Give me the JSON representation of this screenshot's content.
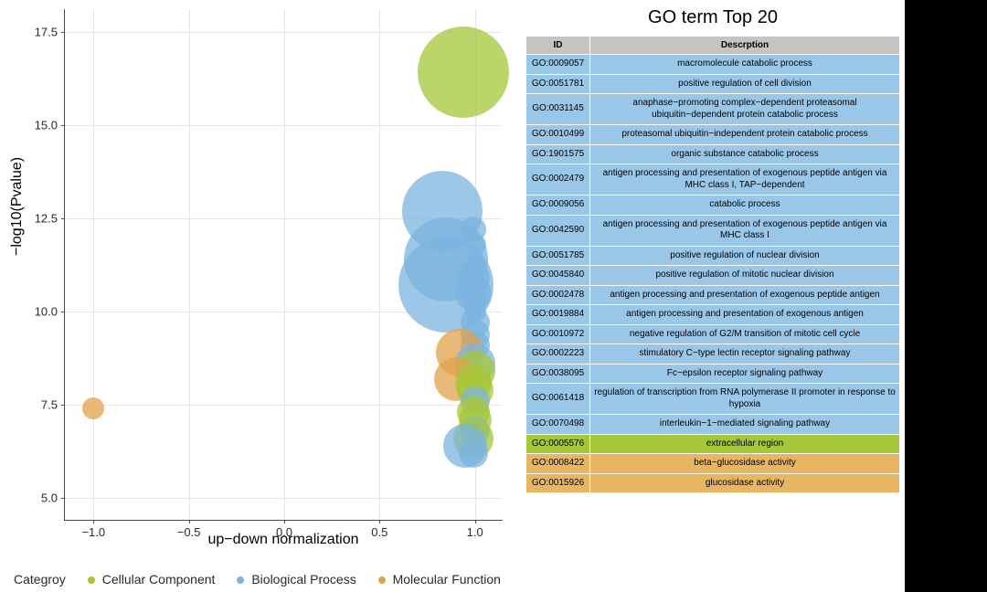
{
  "chart": {
    "type": "scatter-bubble",
    "x_label": "up−down normalization",
    "y_label": "−log10(Pvalue)",
    "xlim": [
      -1.15,
      1.15
    ],
    "ylim": [
      4.4,
      18.1
    ],
    "x_ticks": [
      -1.0,
      -0.5,
      0.0,
      0.5,
      1.0
    ],
    "x_tick_labels": [
      "−1.0",
      "−0.5",
      "0.0",
      "0.5",
      "1.0"
    ],
    "y_ticks": [
      5.0,
      7.5,
      10.0,
      12.5,
      15.0,
      17.5
    ],
    "y_tick_labels": [
      "5.0",
      "7.5",
      "10.0",
      "12.5",
      "15.0",
      "17.5"
    ],
    "grid_color": "#e6e6e6",
    "axis_color": "#4a4a4a",
    "background_color": "#ffffff",
    "bubbles": [
      {
        "x": 0.94,
        "y": 16.4,
        "r": 50,
        "cat": "cc"
      },
      {
        "x": 0.83,
        "y": 12.7,
        "r": 44,
        "cat": "bp"
      },
      {
        "x": 0.99,
        "y": 12.2,
        "r": 14,
        "cat": "bp"
      },
      {
        "x": 1.0,
        "y": 11.8,
        "r": 12,
        "cat": "bp"
      },
      {
        "x": 0.85,
        "y": 11.4,
        "r": 46,
        "cat": "bp"
      },
      {
        "x": 1.0,
        "y": 11.2,
        "r": 12,
        "cat": "bp"
      },
      {
        "x": 0.99,
        "y": 10.9,
        "r": 18,
        "cat": "bp"
      },
      {
        "x": 0.85,
        "y": 10.7,
        "r": 52,
        "cat": "bp"
      },
      {
        "x": 0.99,
        "y": 10.5,
        "r": 20,
        "cat": "bp"
      },
      {
        "x": 1.0,
        "y": 10.3,
        "r": 12,
        "cat": "bp"
      },
      {
        "x": 1.0,
        "y": 10.0,
        "r": 12,
        "cat": "bp"
      },
      {
        "x": 1.0,
        "y": 9.7,
        "r": 16,
        "cat": "bp"
      },
      {
        "x": 1.0,
        "y": 9.4,
        "r": 16,
        "cat": "bp"
      },
      {
        "x": 1.0,
        "y": 9.1,
        "r": 16,
        "cat": "bp"
      },
      {
        "x": 0.92,
        "y": 8.9,
        "r": 26,
        "cat": "mf"
      },
      {
        "x": 1.0,
        "y": 8.6,
        "r": 22,
        "cat": "bp"
      },
      {
        "x": 1.0,
        "y": 8.4,
        "r": 22,
        "cat": "cc"
      },
      {
        "x": 0.9,
        "y": 8.2,
        "r": 24,
        "cat": "mf"
      },
      {
        "x": 0.99,
        "y": 8.1,
        "r": 20,
        "cat": "cc"
      },
      {
        "x": 1.0,
        "y": 7.9,
        "r": 20,
        "cat": "cc"
      },
      {
        "x": 1.0,
        "y": 7.6,
        "r": 16,
        "cat": "bp"
      },
      {
        "x": 0.99,
        "y": 7.3,
        "r": 18,
        "cat": "cc"
      },
      {
        "x": 1.0,
        "y": 7.1,
        "r": 18,
        "cat": "cc"
      },
      {
        "x": 1.0,
        "y": 6.8,
        "r": 16,
        "cat": "bp"
      },
      {
        "x": 0.99,
        "y": 6.6,
        "r": 22,
        "cat": "cc"
      },
      {
        "x": 0.95,
        "y": 6.4,
        "r": 24,
        "cat": "bp"
      },
      {
        "x": 0.99,
        "y": 6.2,
        "r": 16,
        "cat": "bp"
      },
      {
        "x": -1.0,
        "y": 7.4,
        "r": 12,
        "cat": "mf"
      }
    ],
    "category_colors": {
      "cc": "#a5c73a",
      "bp": "#7bb4df",
      "mf": "#e2a24a"
    }
  },
  "legend": {
    "title": "Categroy",
    "items": [
      {
        "label": "Cellular Component",
        "color": "#a5c73a"
      },
      {
        "label": "Biological Process",
        "color": "#7bb4df"
      },
      {
        "label": "Molecular Function",
        "color": "#e2a24a"
      }
    ]
  },
  "table": {
    "title": "GO term Top 20",
    "headers": [
      "ID",
      "Descrption"
    ],
    "header_bg": "#c4c4c4",
    "rows": [
      {
        "id": "GO:0009057",
        "desc": "macromolecule catabolic process",
        "cat": "bp"
      },
      {
        "id": "GO:0051781",
        "desc": "positive regulation of cell division",
        "cat": "bp"
      },
      {
        "id": "GO:0031145",
        "desc": "anaphase−promoting complex−dependent proteasomal ubiquitin−dependent protein catabolic process",
        "cat": "bp"
      },
      {
        "id": "GO:0010499",
        "desc": "proteasomal ubiquitin−independent protein catabolic process",
        "cat": "bp"
      },
      {
        "id": "GO:1901575",
        "desc": "organic substance catabolic process",
        "cat": "bp"
      },
      {
        "id": "GO:0002479",
        "desc": "antigen processing and presentation of exogenous peptide antigen via MHC class I, TAP−dependent",
        "cat": "bp"
      },
      {
        "id": "GO:0009056",
        "desc": "catabolic process",
        "cat": "bp"
      },
      {
        "id": "GO:0042590",
        "desc": "antigen processing and presentation of exogenous peptide antigen via MHC class I",
        "cat": "bp"
      },
      {
        "id": "GO:0051785",
        "desc": "positive regulation of nuclear division",
        "cat": "bp"
      },
      {
        "id": "GO:0045840",
        "desc": "positive regulation of mitotic nuclear division",
        "cat": "bp"
      },
      {
        "id": "GO:0002478",
        "desc": "antigen processing and presentation of exogenous peptide antigen",
        "cat": "bp"
      },
      {
        "id": "GO:0019884",
        "desc": "antigen processing and presentation of exogenous antigen",
        "cat": "bp"
      },
      {
        "id": "GO:0010972",
        "desc": "negative regulation of G2/M transition of mitotic cell cycle",
        "cat": "bp"
      },
      {
        "id": "GO:0002223",
        "desc": "stimulatory C−type lectin receptor signaling pathway",
        "cat": "bp"
      },
      {
        "id": "GO:0038095",
        "desc": "Fc−epsilon receptor signaling pathway",
        "cat": "bp"
      },
      {
        "id": "GO:0061418",
        "desc": "regulation of transcription from RNA polymerase II promoter in response to hypoxia",
        "cat": "bp"
      },
      {
        "id": "GO:0070498",
        "desc": "interleukin−1−mediated signaling pathway",
        "cat": "bp"
      },
      {
        "id": "GO:0005576",
        "desc": "extracellular region",
        "cat": "cc"
      },
      {
        "id": "GO:0008422",
        "desc": "beta−glucosidase activity",
        "cat": "mf"
      },
      {
        "id": "GO:0015926",
        "desc": "glucosidase activity",
        "cat": "mf"
      }
    ],
    "row_colors": {
      "bp": "#9ac7e8",
      "cc": "#a5c73a",
      "mf": "#e8b663"
    }
  }
}
